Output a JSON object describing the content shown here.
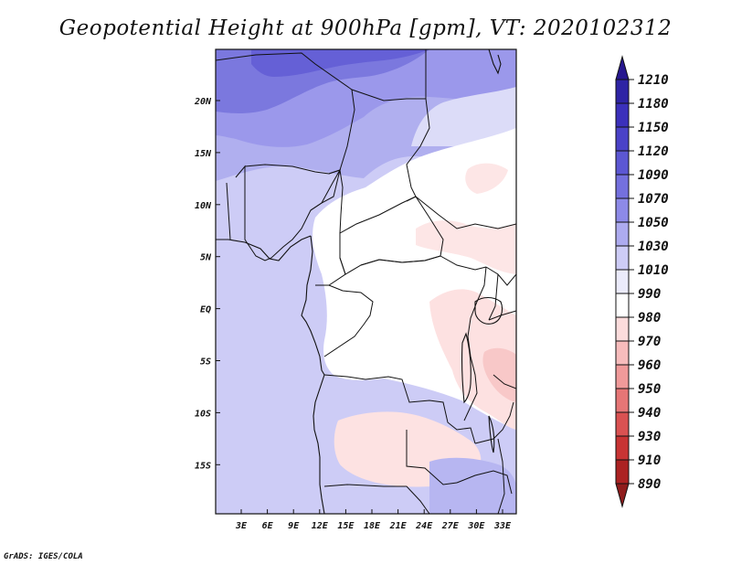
{
  "title": "Geopotential Height at 900hPa [gpm], VT: 2020102312",
  "credit": "GrADS: IGES/COLA",
  "colors": {
    "background": "#ffffff",
    "border": "#111111"
  },
  "map": {
    "region": "Central Africa",
    "projection": "latlon",
    "x_ticks": [
      "3E",
      "6E",
      "9E",
      "12E",
      "15E",
      "18E",
      "21E",
      "24E",
      "27E",
      "30E",
      "33E"
    ],
    "y_ticks": [
      "20N",
      "15N",
      "10N",
      "5N",
      "EQ",
      "5S",
      "10S",
      "15S"
    ],
    "field_pattern": [
      {
        "area": "Sahara north",
        "band": "1050-1070"
      },
      {
        "area": "Atlantic Ocean",
        "band": "1010-1030"
      },
      {
        "area": "Congo Basin interior",
        "band": "990-1010"
      },
      {
        "area": "East African Rift / Great Lakes",
        "band": "980-990"
      },
      {
        "area": "Southern Congo / Zambia",
        "band": "980-990"
      }
    ]
  },
  "colorbar": {
    "labels": [
      "1210",
      "1180",
      "1150",
      "1120",
      "1090",
      "1070",
      "1050",
      "1030",
      "1010",
      "990",
      "980",
      "970",
      "960",
      "950",
      "940",
      "930",
      "910",
      "890"
    ],
    "colors": [
      "#27178f",
      "#2e24a5",
      "#3b30bb",
      "#4a42c8",
      "#5c57d3",
      "#7470de",
      "#8d8ae8",
      "#adabef",
      "#cdccf6",
      "#ebebfb",
      "#ffffff",
      "#fcdcdc",
      "#f7bcbc",
      "#f09a9a",
      "#e67676",
      "#da5252",
      "#c83434",
      "#ac2323",
      "#8f1c1c"
    ]
  }
}
